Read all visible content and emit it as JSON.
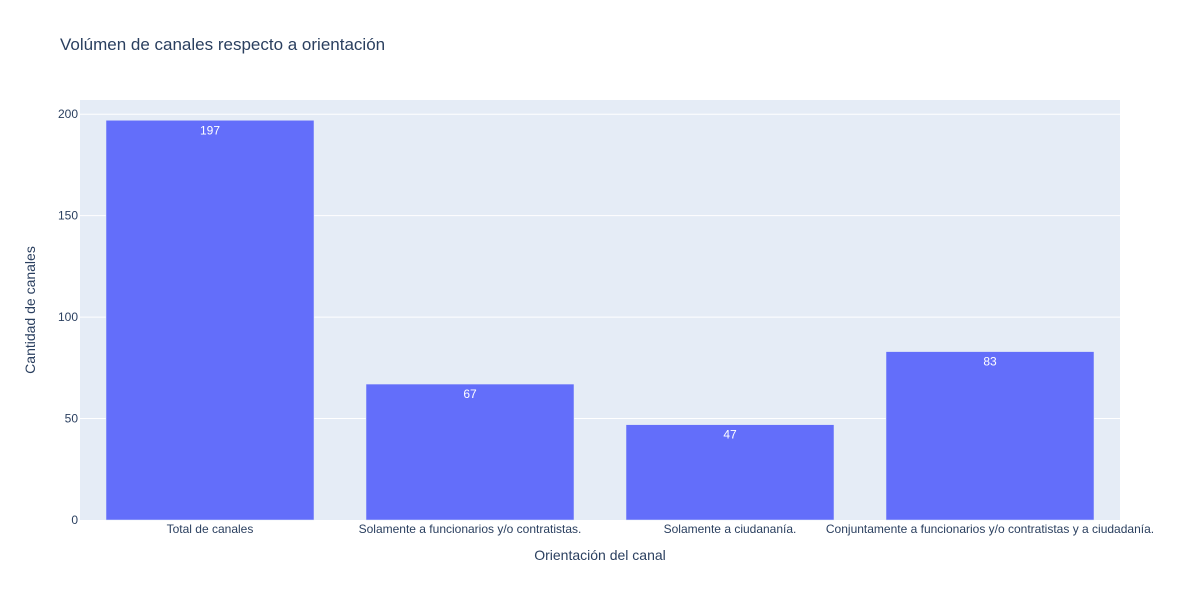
{
  "chart_data": {
    "type": "bar",
    "title": "Volúmen de canales respecto a orientación",
    "xlabel": "Orientación del canal",
    "ylabel": "Cantidad de canales",
    "categories": [
      "Total de canales",
      "Solamente a funcionarios y/o contratistas.",
      "Solamente a ciudananía.",
      "Conjuntamente a funcionarios y/o contratistas y a ciudadanía."
    ],
    "values": [
      197,
      67,
      47,
      83
    ],
    "data_labels": [
      "197",
      "67",
      "47",
      "83"
    ],
    "ylim": [
      0,
      207
    ],
    "yticks": [
      0,
      50,
      100,
      150,
      200
    ],
    "ytick_labels": [
      "0",
      "50",
      "100",
      "150",
      "200"
    ],
    "grid": true,
    "legend": "none"
  },
  "colors": {
    "bar": "#636efa",
    "plot_background": "#e5ecf6",
    "grid": "#ffffff",
    "text": "#2a3f5f"
  }
}
